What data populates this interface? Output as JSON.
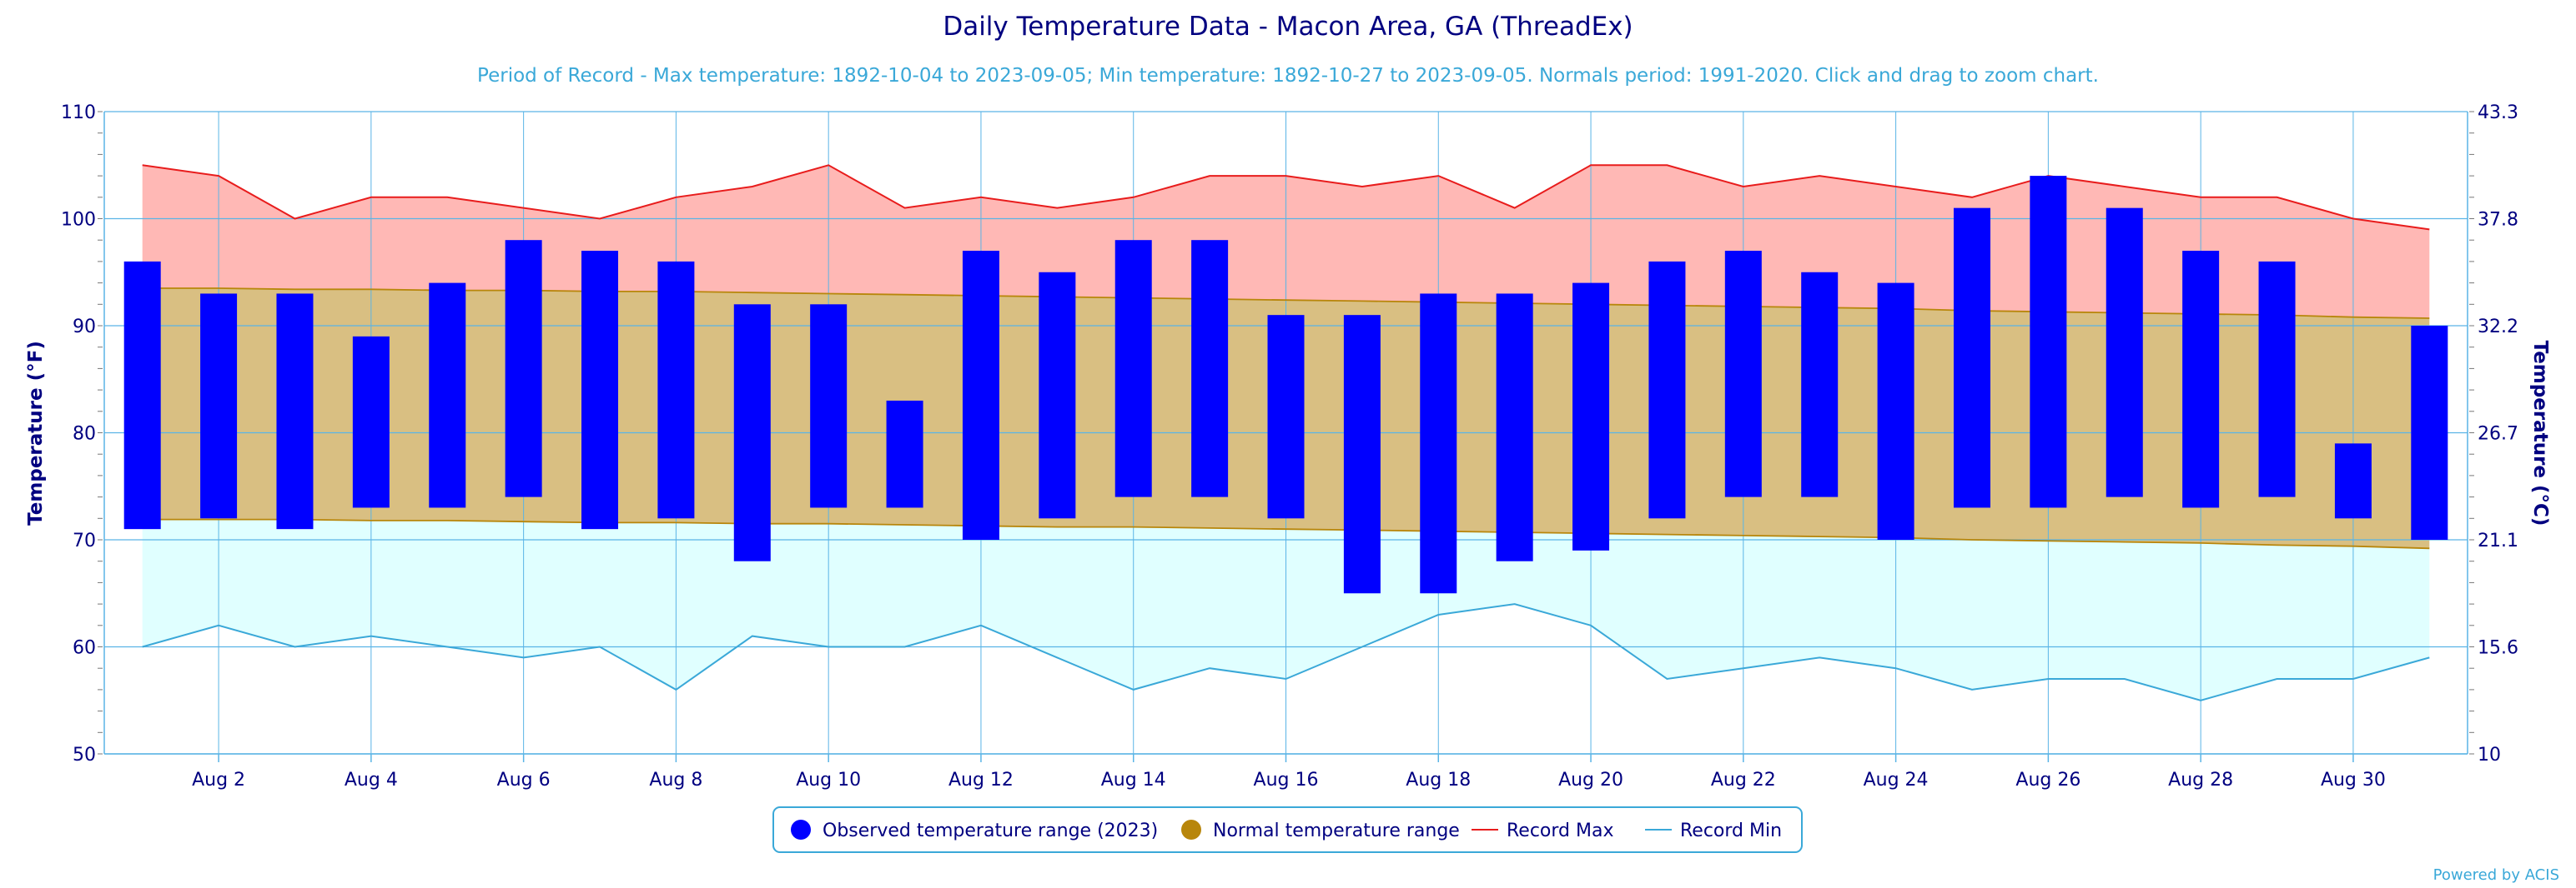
{
  "chart_data": {
    "type": "bar",
    "title": "Daily Temperature Data - Macon Area, GA (ThreadEx)",
    "subtitle": "Period of Record - Max temperature: 1892-10-04 to 2023-09-05; Min temperature: 1892-10-27 to 2023-09-05. Normals period: 1991-2020. Click and drag to zoom chart.",
    "ylabel_left": "Temperature (°F)",
    "ylabel_right": "Temperature (°C)",
    "ylim": [
      50,
      110
    ],
    "yticks_left": [
      "50",
      "60",
      "70",
      "80",
      "90",
      "100",
      "110"
    ],
    "yticks_right": [
      "10",
      "15.6",
      "21.1",
      "26.7",
      "32.2",
      "37.8",
      "43.3"
    ],
    "xlim": [
      0.5,
      31.5
    ],
    "x_ticks": [
      {
        "day": 2,
        "label": "Aug 2"
      },
      {
        "day": 4,
        "label": "Aug 4"
      },
      {
        "day": 6,
        "label": "Aug 6"
      },
      {
        "day": 8,
        "label": "Aug 8"
      },
      {
        "day": 10,
        "label": "Aug 10"
      },
      {
        "day": 12,
        "label": "Aug 12"
      },
      {
        "day": 14,
        "label": "Aug 14"
      },
      {
        "day": 16,
        "label": "Aug 16"
      },
      {
        "day": 18,
        "label": "Aug 18"
      },
      {
        "day": 20,
        "label": "Aug 20"
      },
      {
        "day": 22,
        "label": "Aug 22"
      },
      {
        "day": 24,
        "label": "Aug 24"
      },
      {
        "day": 26,
        "label": "Aug 26"
      },
      {
        "day": 28,
        "label": "Aug 28"
      },
      {
        "day": 30,
        "label": "Aug 30"
      }
    ],
    "days": [
      1,
      2,
      3,
      4,
      5,
      6,
      7,
      8,
      9,
      10,
      11,
      12,
      13,
      14,
      15,
      16,
      17,
      18,
      19,
      20,
      21,
      22,
      23,
      24,
      25,
      26,
      27,
      28,
      29,
      30,
      31
    ],
    "series": [
      {
        "name": "Observed temperature range (2023)",
        "color": "#0000ff",
        "high": [
          96,
          93,
          93,
          89,
          94,
          98,
          97,
          96,
          92,
          92,
          83,
          97,
          95,
          98,
          98,
          91,
          91,
          93,
          93,
          94,
          96,
          97,
          95,
          94,
          101,
          104,
          101,
          97,
          96,
          79,
          90
        ],
        "low": [
          71,
          72,
          71,
          73,
          73,
          74,
          71,
          72,
          68,
          73,
          73,
          70,
          72,
          74,
          74,
          72,
          65,
          65,
          68,
          69,
          72,
          74,
          74,
          70,
          73,
          73,
          74,
          73,
          74,
          72,
          70
        ]
      },
      {
        "name": "Normal temperature range",
        "color": "#b8860b",
        "high": [
          93.5,
          93.5,
          93.4,
          93.4,
          93.3,
          93.3,
          93.2,
          93.2,
          93.1,
          93.0,
          92.9,
          92.8,
          92.7,
          92.6,
          92.5,
          92.4,
          92.3,
          92.2,
          92.1,
          92.0,
          91.9,
          91.8,
          91.7,
          91.6,
          91.4,
          91.3,
          91.2,
          91.1,
          91.0,
          90.8,
          90.7
        ],
        "low": [
          71.9,
          71.9,
          71.9,
          71.8,
          71.8,
          71.7,
          71.6,
          71.6,
          71.5,
          71.5,
          71.4,
          71.3,
          71.2,
          71.2,
          71.1,
          71.0,
          70.9,
          70.8,
          70.7,
          70.6,
          70.5,
          70.4,
          70.3,
          70.2,
          70.0,
          69.9,
          69.8,
          69.7,
          69.5,
          69.4,
          69.2
        ]
      },
      {
        "name": "Record Max",
        "color": "#e81c1c",
        "values": [
          105,
          104,
          100,
          102,
          102,
          101,
          100,
          102,
          103,
          105,
          101,
          102,
          101,
          102,
          104,
          104,
          103,
          104,
          101,
          105,
          105,
          103,
          104,
          103,
          102,
          104,
          103,
          102,
          102,
          100,
          99
        ]
      },
      {
        "name": "Record Min",
        "color": "#3aa8d8",
        "values": [
          60,
          62,
          60,
          61,
          60,
          59,
          60,
          56,
          61,
          60,
          60,
          62,
          59,
          56,
          58,
          57,
          60,
          63,
          64,
          62,
          57,
          58,
          59,
          58,
          56,
          57,
          57,
          55,
          57,
          57,
          59
        ]
      }
    ],
    "grid": true,
    "legend_position": "bottom-center",
    "credit": "Powered by ACIS"
  }
}
